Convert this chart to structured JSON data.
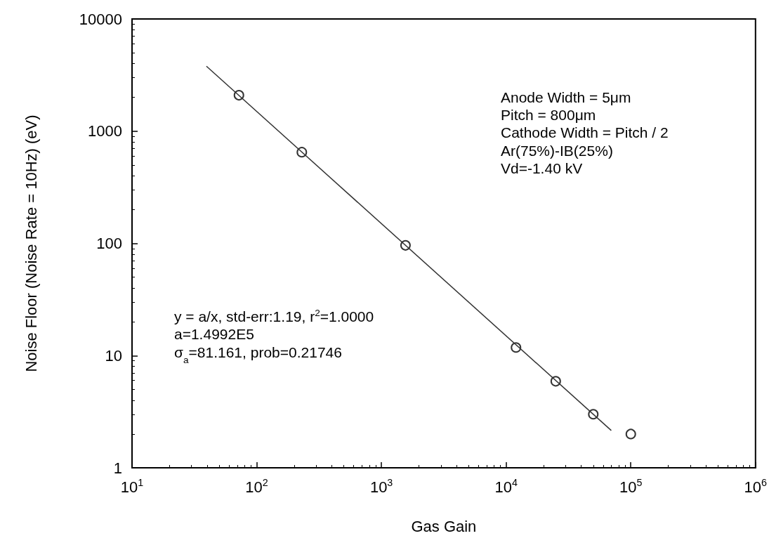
{
  "chart_data": {
    "type": "scatter",
    "xlabel": "Gas Gain",
    "ylabel": "Noise Floor (Noise Rate = 10Hz) (eV)",
    "log": "xy",
    "grid": false,
    "marker": "circle",
    "xlim": [
      10,
      1000000
    ],
    "ylim": [
      1,
      10000
    ],
    "xticks": [
      {
        "value": 10,
        "label": "10$^{1}$"
      },
      {
        "value": 100,
        "label": "10$^{2}$"
      },
      {
        "value": 1000,
        "label": "10$^{3}$"
      },
      {
        "value": 10000,
        "label": "10$^{4}$"
      },
      {
        "value": 100000,
        "label": "10$^{5}$"
      },
      {
        "value": 1000000,
        "label": "10$^{6}$"
      }
    ],
    "yticks": [
      1,
      10,
      100,
      1000,
      10000
    ],
    "x": [
      72,
      230,
      1560,
      12000,
      25000,
      50000,
      100000
    ],
    "series": [
      {
        "color": "#000000",
        "values": [
          2090,
          650,
          96,
          11.8,
          5.9,
          3.0,
          2.0
        ]
      },
      {
        "type": "line",
        "color": "#333333",
        "marker": "none",
        "line_style": "solid",
        "x": [
          39.5,
          69700
        ],
        "values": [
          3795,
          2.15
        ]
      }
    ],
    "annotations": [
      "Anode Width = 5μm\nPitch = 800μm\nCathode Width = Pitch / 2\nAr(75%)-IB(25%)\nVd=-1.40 kV",
      "y = a/x, std-err:1.19, r$^{2}$=1.0000\na=1.4992E5\nσ$_{a}$=81.161, prob=0.21746"
    ]
  }
}
